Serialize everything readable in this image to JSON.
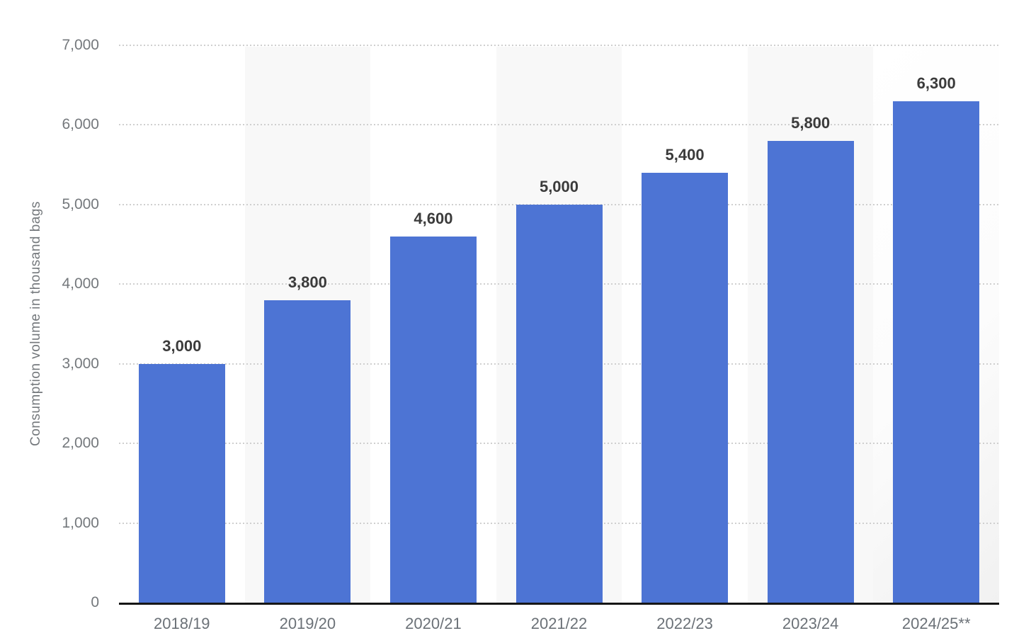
{
  "chart_data": {
    "type": "bar",
    "title": "",
    "xlabel": "",
    "ylabel": "Consumption volume in thousand bags",
    "categories": [
      "2018/19",
      "2019/20",
      "2020/21",
      "2021/22",
      "2022/23",
      "2023/24",
      "2024/25**"
    ],
    "values": [
      3000,
      3800,
      4600,
      5000,
      5400,
      5800,
      6300
    ],
    "value_labels": [
      "3,000",
      "3,800",
      "4,600",
      "5,000",
      "5,400",
      "5,800",
      "6,300"
    ],
    "ylim": [
      0,
      7000
    ],
    "ytick_interval": 1000,
    "ytick_labels": [
      "0",
      "1,000",
      "2,000",
      "3,000",
      "4,000",
      "5,000",
      "6,000",
      "7,000"
    ],
    "grid": "horizontal-dotted",
    "legend_position": "none",
    "colors": {
      "bar": "#4d74d4",
      "value_label": "#3b3b3b",
      "axis_text": "#74787c",
      "x_axis_text": "#6b7177",
      "gridline": "#cfcfcf",
      "stripe": "#f8f8f8",
      "axis_line": "#161616",
      "background": "#ffffff"
    },
    "striped_columns": [
      1,
      3,
      5
    ],
    "gradient_column": 6
  }
}
